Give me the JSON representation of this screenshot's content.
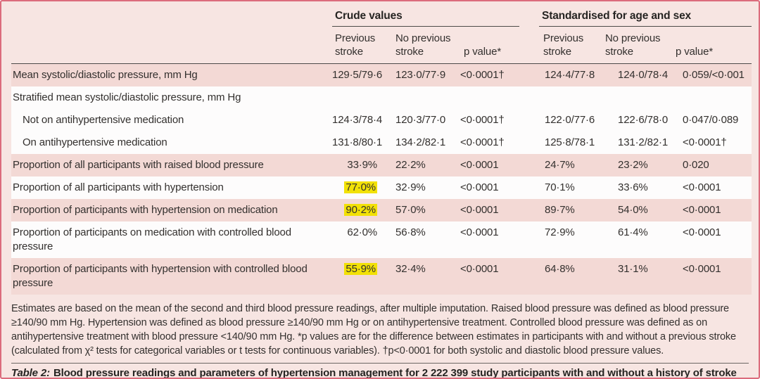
{
  "colors": {
    "panel_bg": "#f7e5e2",
    "row_pink": "#f3d9d5",
    "row_white": "#fdfcfc",
    "border": "#db6b7c",
    "rule": "#4d4a48",
    "highlight": "#f2e106"
  },
  "table": {
    "col_groups": [
      {
        "label": "Crude values"
      },
      {
        "label": "Standardised for age and sex"
      }
    ],
    "sub_headers": [
      "Previous stroke",
      "No previous stroke",
      "p value*",
      "Previous stroke",
      "No previous stroke",
      "p value*"
    ],
    "rows": [
      {
        "label": "Mean systolic/diastolic pressure, mm Hg",
        "indent": 0,
        "shade": "pink",
        "values": [
          "129·5/79·6",
          "123·0/77·9",
          "<0·0001†",
          "124·4/77·8",
          "124·0/78·4",
          "0·059/<0·001"
        ],
        "highlight": []
      },
      {
        "label": "Stratified mean systolic/diastolic pressure, mm Hg",
        "indent": 0,
        "shade": "white",
        "values": [
          "",
          "",
          "",
          "",
          "",
          ""
        ],
        "highlight": []
      },
      {
        "label": "Not on antihypertensive medication",
        "indent": 1,
        "shade": "white",
        "values": [
          "124·3/78·4",
          "120·3/77·0",
          "<0·0001†",
          "122·0/77·6",
          "122·6/78·0",
          "0·047/0·089"
        ],
        "highlight": []
      },
      {
        "label": "On antihypertensive medication",
        "indent": 1,
        "shade": "white",
        "values": [
          "131·8/80·1",
          "134·2/82·1",
          "<0·0001†",
          "125·8/78·1",
          "131·2/82·1",
          "<0·0001†"
        ],
        "highlight": []
      },
      {
        "label": "Proportion of all participants with raised blood pressure",
        "indent": 0,
        "shade": "pink",
        "values": [
          "33·9%",
          "22·2%",
          "<0·0001",
          "24·7%",
          "23·2%",
          "0·020"
        ],
        "highlight": []
      },
      {
        "label": "Proportion of all participants with hypertension",
        "indent": 0,
        "shade": "white",
        "values": [
          "77·0%",
          "32·9%",
          "<0·0001",
          "70·1%",
          "33·6%",
          "<0·0001"
        ],
        "highlight": [
          0
        ]
      },
      {
        "label": "Proportion of participants with hypertension on medication",
        "indent": 0,
        "shade": "pink",
        "values": [
          "90·2%",
          "57·0%",
          "<0·0001",
          "89·7%",
          "54·0%",
          "<0·0001"
        ],
        "highlight": [
          0
        ]
      },
      {
        "label": "Proportion of participants on medication with controlled blood pressure",
        "indent": 0,
        "shade": "white",
        "values": [
          "62·0%",
          "56·8%",
          "<0·0001",
          "72·9%",
          "61·4%",
          "<0·0001"
        ],
        "highlight": []
      },
      {
        "label": "Proportion of participants with hypertension with controlled blood pressure",
        "indent": 0,
        "shade": "pink",
        "values": [
          "55·9%",
          "32·4%",
          "<0·0001",
          "64·8%",
          "31·1%",
          "<0·0001"
        ],
        "highlight": [
          0
        ]
      }
    ]
  },
  "footnote": "Estimates are based on the mean of the second and third blood pressure readings, after multiple imputation. Raised blood pressure was defined as blood pressure ≥140/90 mm Hg. Hypertension was defined as blood pressure ≥140/90 mm Hg or on antihypertensive treatment. Controlled blood pressure was defined as on antihypertensive treatment with blood pressure <140/90 mm Hg. *p values are for the difference between estimates in participants with and without a previous stroke (calculated from χ² tests for categorical variables or t tests for continuous variables). †p<0·0001 for both systolic and diastolic blood pressure values.",
  "caption": {
    "prefix": "Table 2:",
    "text": "Blood pressure readings and parameters of hypertension management for 2 222 399 study participants with and without a history of stroke"
  }
}
